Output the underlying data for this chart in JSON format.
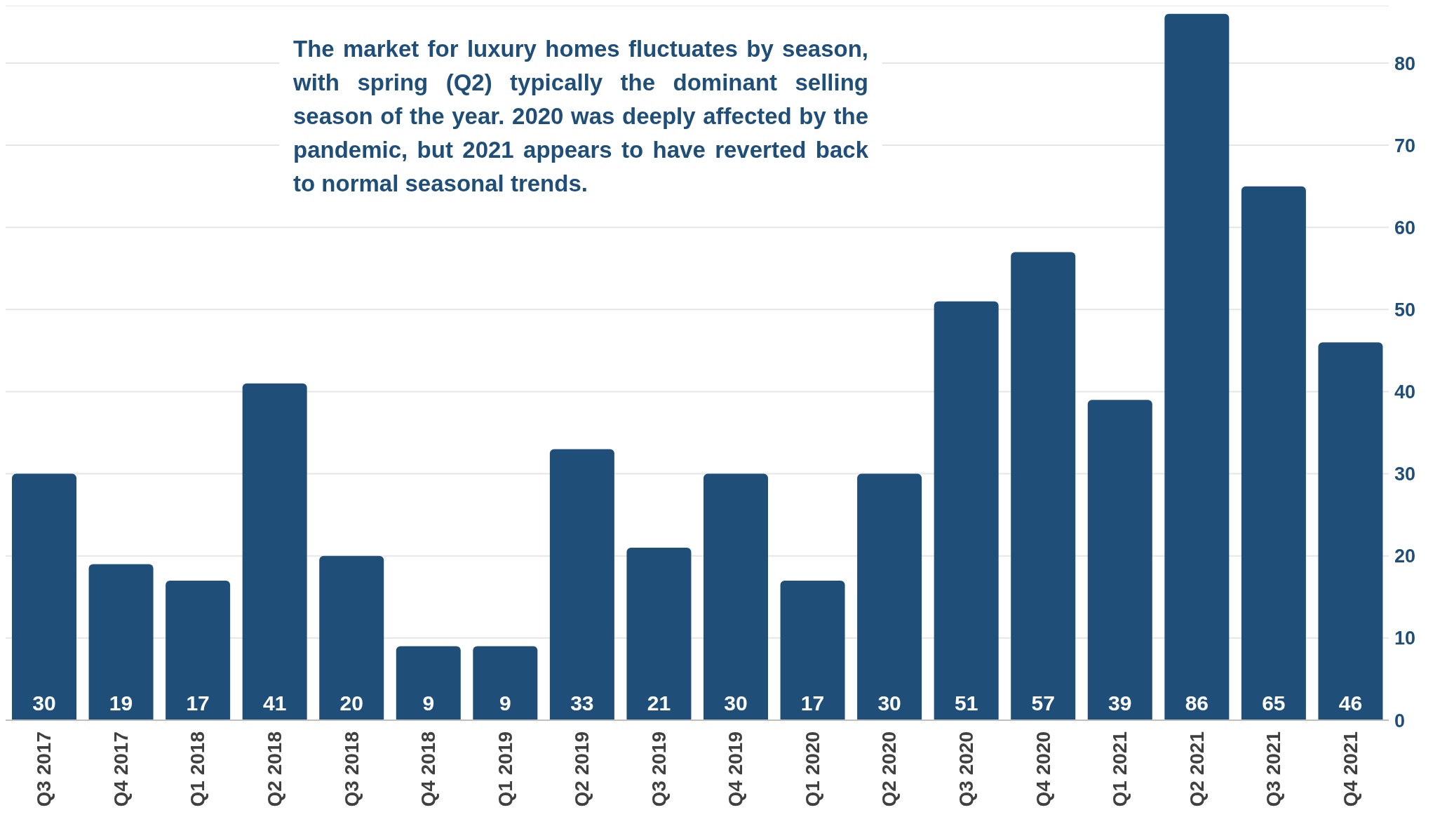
{
  "chart_data": {
    "type": "bar",
    "categories": [
      "Q3 2017",
      "Q4 2017",
      "Q1 2018",
      "Q2 2018",
      "Q3 2018",
      "Q4 2018",
      "Q1 2019",
      "Q2 2019",
      "Q3 2019",
      "Q4 2019",
      "Q1 2020",
      "Q2 2020",
      "Q3 2020",
      "Q4 2020",
      "Q1 2021",
      "Q2 2021",
      "Q3 2021",
      "Q4 2021"
    ],
    "values": [
      30,
      19,
      17,
      41,
      20,
      9,
      9,
      33,
      21,
      30,
      17,
      30,
      51,
      57,
      39,
      86,
      65,
      46
    ],
    "color": "#1f4e79",
    "ylim": [
      0,
      87
    ],
    "yticks": [
      0,
      10,
      20,
      30,
      40,
      50,
      60,
      70,
      80
    ],
    "grid": "y",
    "data_labels": true,
    "legend": false,
    "annotations": [
      "The market for luxury homes fluctuates by season, with spring (Q2) typically the dominant selling season of the year. 2020 was deeply affected by the pandemic, but 2021 appears to have reverted back to normal seasonal trends."
    ]
  }
}
